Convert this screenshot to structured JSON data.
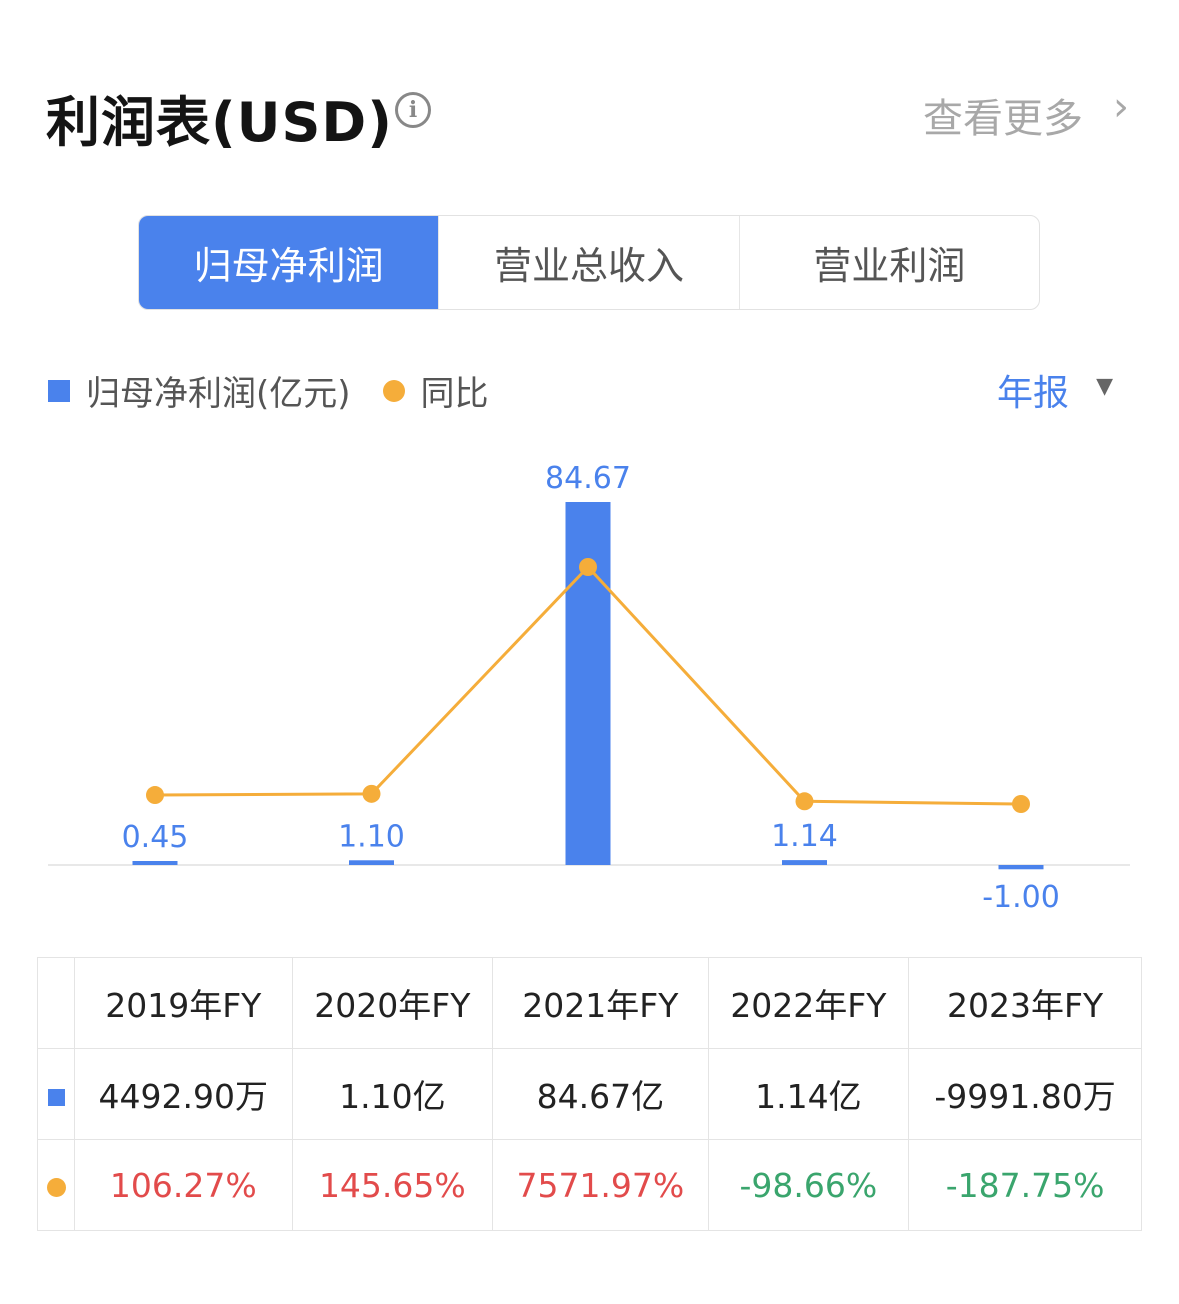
{
  "header": {
    "title": "利润表(USD)",
    "info_icon": "info-icon",
    "more_label": "查看更多",
    "chevron_icon": "chevron-right-icon"
  },
  "tabs": [
    {
      "label": "归母净利润",
      "active": true
    },
    {
      "label": "营业总收入",
      "active": false
    },
    {
      "label": "营业利润",
      "active": false
    }
  ],
  "period_select": {
    "value": "年报",
    "icon": "caret-down-icon"
  },
  "colors": {
    "bar": "#4a82ec",
    "line": "#f5ad3a",
    "positive": "#e24b4b",
    "negative": "#3aa56d"
  },
  "chart_data": {
    "type": "bar+line",
    "categories": [
      "2019年FY",
      "2020年FY",
      "2021年FY",
      "2022年FY",
      "2023年FY"
    ],
    "series": [
      {
        "name": "归母净利润(亿元)",
        "type": "bar",
        "values": [
          0.45,
          1.1,
          84.67,
          1.14,
          -1.0
        ],
        "labels": [
          "0.45",
          "1.10",
          "84.67",
          "1.14",
          "-1.00"
        ]
      },
      {
        "name": "同比",
        "type": "line",
        "values": [
          106.27,
          145.65,
          7571.97,
          -98.66,
          -187.75
        ],
        "unit": "%"
      }
    ],
    "legend": "top-left",
    "grid": false
  },
  "table": {
    "headers": [
      "2019年FY",
      "2020年FY",
      "2021年FY",
      "2022年FY",
      "2023年FY"
    ],
    "rows": [
      {
        "marker": "bar",
        "cells": [
          "4492.90万",
          "1.10亿",
          "84.67亿",
          "1.14亿",
          "-9991.80万"
        ]
      },
      {
        "marker": "line",
        "cells": [
          "106.27%",
          "145.65%",
          "7571.97%",
          "-98.66%",
          "-187.75%"
        ]
      }
    ]
  }
}
